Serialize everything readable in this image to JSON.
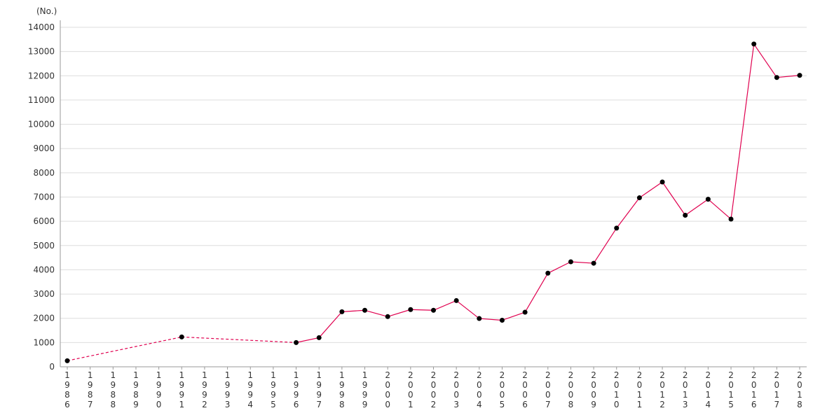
{
  "chart_data": {
    "type": "line",
    "unit_label": "(No.)",
    "x": [
      1986,
      1987,
      1988,
      1989,
      1990,
      1991,
      1992,
      1993,
      1994,
      1995,
      1996,
      1997,
      1998,
      1999,
      2000,
      2001,
      2002,
      2003,
      2004,
      2005,
      2006,
      2007,
      2008,
      2009,
      2010,
      2011,
      2012,
      2013,
      2014,
      2015,
      2016,
      2017,
      2018
    ],
    "x_tick_labels": [
      "1986",
      "1987",
      "1988",
      "1989",
      "1990",
      "1991",
      "1992",
      "1993",
      "1994",
      "1995",
      "1996",
      "1997",
      "1998",
      "1999",
      "2000",
      "2001",
      "2002",
      "2003",
      "2004",
      "2005",
      "2006",
      "2007",
      "2008",
      "2009",
      "2010",
      "2011",
      "2012",
      "2013",
      "2014",
      "2015",
      "2016",
      "2017",
      "2018"
    ],
    "series": [
      {
        "color": "#e0004f",
        "points": [
          {
            "x": 1986,
            "y": 250
          },
          {
            "x": 1991,
            "y": 1230
          },
          {
            "x": 1996,
            "y": 1000
          },
          {
            "x": 1997,
            "y": 1200
          },
          {
            "x": 1998,
            "y": 2270
          },
          {
            "x": 1999,
            "y": 2330
          },
          {
            "x": 2000,
            "y": 2070
          },
          {
            "x": 2001,
            "y": 2360
          },
          {
            "x": 2002,
            "y": 2330
          },
          {
            "x": 2003,
            "y": 2730
          },
          {
            "x": 2004,
            "y": 1990
          },
          {
            "x": 2005,
            "y": 1920
          },
          {
            "x": 2006,
            "y": 2250
          },
          {
            "x": 2007,
            "y": 3860
          },
          {
            "x": 2008,
            "y": 4330
          },
          {
            "x": 2009,
            "y": 4270
          },
          {
            "x": 2010,
            "y": 5720
          },
          {
            "x": 2011,
            "y": 6970
          },
          {
            "x": 2012,
            "y": 7620
          },
          {
            "x": 2013,
            "y": 6250
          },
          {
            "x": 2014,
            "y": 6910
          },
          {
            "x": 2015,
            "y": 6090
          },
          {
            "x": 2016,
            "y": 13310
          },
          {
            "x": 2017,
            "y": 11930
          },
          {
            "x": 2018,
            "y": 12020
          }
        ],
        "dashed_until_x": 1996
      }
    ],
    "y_ticks": [
      0,
      1000,
      2000,
      3000,
      4000,
      5000,
      6000,
      7000,
      8000,
      9000,
      10000,
      11000,
      12000,
      13000,
      14000
    ],
    "ylim": [
      0,
      14000
    ],
    "grid": true,
    "marker_color": "#000000",
    "grid_color": "#dddddd",
    "axis_color": "#999999"
  }
}
